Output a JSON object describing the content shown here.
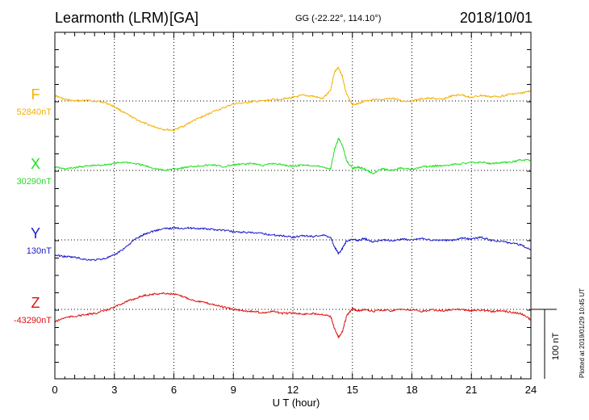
{
  "header": {
    "station": "Learmonth (LRM)",
    "network": "[GA]",
    "coords": "GG (-22.22°, 114.10°)",
    "date": "2018/10/01"
  },
  "plotted_note": "Plotted at 2019/01/29 10:45 UT",
  "scale_label": "100 nT",
  "colors": {
    "F": "#f5b000",
    "X": "#22dd22",
    "Y": "#1a1acc",
    "Z": "#e01010",
    "frame": "#000000"
  },
  "chart_data": {
    "type": "line",
    "xlabel": "U T (hour)",
    "xlim": [
      0,
      24
    ],
    "xticks": [
      "0",
      "3",
      "6",
      "9",
      "12",
      "15",
      "18",
      "21",
      "24"
    ],
    "grid": true,
    "scale_nT": 100,
    "series": [
      {
        "name": "F",
        "baseline_label": "52840nT",
        "baseline": 52840,
        "x": [
          0,
          0.5,
          1,
          1.5,
          2,
          2.5,
          3,
          3.5,
          4,
          4.5,
          5,
          5.5,
          6,
          6.5,
          7,
          7.5,
          8,
          8.5,
          9,
          9.5,
          10,
          10.5,
          11,
          11.5,
          12,
          12.5,
          13,
          13.5,
          13.9,
          14.1,
          14.3,
          14.5,
          14.7,
          15,
          15.3,
          15.6,
          16,
          16.5,
          17,
          17.5,
          18,
          18.5,
          19,
          19.5,
          20,
          20.5,
          21,
          21.5,
          22,
          22.5,
          23,
          23.5,
          24
        ],
        "y": [
          52848,
          52842,
          52840,
          52841,
          52840,
          52838,
          52832,
          52823,
          52815,
          52808,
          52803,
          52799,
          52798,
          52804,
          52812,
          52818,
          52825,
          52830,
          52836,
          52837,
          52839,
          52840,
          52842,
          52843,
          52845,
          52848,
          52847,
          52843,
          52856,
          52882,
          52888,
          52875,
          52850,
          52835,
          52836,
          52840,
          52842,
          52841,
          52844,
          52840,
          52840,
          52843,
          52844,
          52842,
          52847,
          52849,
          52845,
          52848,
          52846,
          52847,
          52850,
          52851,
          52855
        ]
      },
      {
        "name": "X",
        "baseline_label": "30290nT",
        "baseline": 30290,
        "x": [
          0,
          0.5,
          1,
          1.5,
          2,
          2.5,
          3,
          3.5,
          4,
          4.5,
          5,
          5.5,
          6,
          6.5,
          7,
          7.5,
          8,
          8.5,
          9,
          9.5,
          10,
          10.5,
          11,
          11.5,
          12,
          12.5,
          13,
          13.5,
          13.9,
          14.1,
          14.3,
          14.5,
          14.7,
          15,
          15.3,
          15.6,
          16,
          16.5,
          17,
          17.5,
          18,
          18.5,
          19,
          19.5,
          20,
          20.5,
          21,
          21.5,
          22,
          22.5,
          23,
          23.5,
          24
        ],
        "y": [
          30295,
          30292,
          30294,
          30296,
          30297,
          30298,
          30300,
          30302,
          30300,
          30297,
          30293,
          30290,
          30292,
          30294,
          30296,
          30297,
          30298,
          30295,
          30298,
          30299,
          30300,
          30297,
          30300,
          30298,
          30296,
          30298,
          30297,
          30295,
          30292,
          30320,
          30336,
          30326,
          30305,
          30293,
          30295,
          30292,
          30286,
          30292,
          30290,
          30294,
          30291,
          30295,
          30296,
          30297,
          30298,
          30300,
          30301,
          30302,
          30300,
          30301,
          30302,
          30305,
          30305
        ]
      },
      {
        "name": "Y",
        "baseline_label": "130nT",
        "baseline": 130,
        "x": [
          0,
          0.5,
          1,
          1.5,
          2,
          2.5,
          3,
          3.5,
          4,
          4.5,
          5,
          5.5,
          6,
          6.5,
          7,
          7.5,
          8,
          8.5,
          9,
          9.5,
          10,
          10.5,
          11,
          11.5,
          12,
          12.5,
          13,
          13.5,
          13.9,
          14.1,
          14.3,
          14.5,
          14.7,
          15,
          15.3,
          15.6,
          16,
          16.5,
          17,
          17.5,
          18,
          18.5,
          19,
          19.5,
          20,
          20.5,
          21,
          21.5,
          22,
          22.5,
          23,
          23.5,
          24
        ],
        "y": [
          108,
          106,
          105,
          102,
          101,
          103,
          108,
          118,
          130,
          138,
          143,
          146,
          147,
          147,
          147,
          146,
          145,
          144,
          142,
          141,
          140,
          139,
          137,
          136,
          134,
          136,
          135,
          137,
          134,
          120,
          110,
          118,
          128,
          131,
          129,
          132,
          127,
          130,
          129,
          131,
          130,
          132,
          129,
          130,
          129,
          133,
          131,
          134,
          129,
          128,
          125,
          123,
          115
        ]
      },
      {
        "name": "Z",
        "baseline_label": "-43290nT",
        "baseline": -43290,
        "x": [
          0,
          0.5,
          1,
          1.5,
          2,
          2.5,
          3,
          3.5,
          4,
          4.5,
          5,
          5.5,
          6,
          6.5,
          7,
          7.5,
          8,
          8.5,
          9,
          9.5,
          10,
          10.5,
          11,
          11.5,
          12,
          12.5,
          13,
          13.5,
          13.9,
          14.1,
          14.3,
          14.5,
          14.7,
          15,
          15.3,
          15.6,
          16,
          16.5,
          17,
          17.5,
          18,
          18.5,
          19,
          19.5,
          20,
          20.5,
          21,
          21.5,
          22,
          22.5,
          23,
          23.5,
          24
        ],
        "y": [
          -43308,
          -43302,
          -43300,
          -43298,
          -43296,
          -43292,
          -43287,
          -43280,
          -43275,
          -43270,
          -43268,
          -43267,
          -43268,
          -43272,
          -43277,
          -43280,
          -43283,
          -43287,
          -43290,
          -43292,
          -43293,
          -43295,
          -43293,
          -43296,
          -43295,
          -43297,
          -43296,
          -43297,
          -43300,
          -43318,
          -43330,
          -43322,
          -43300,
          -43289,
          -43292,
          -43290,
          -43293,
          -43291,
          -43292,
          -43290,
          -43291,
          -43293,
          -43291,
          -43292,
          -43291,
          -43290,
          -43292,
          -43291,
          -43293,
          -43292,
          -43294,
          -43296,
          -43305
        ]
      }
    ]
  }
}
